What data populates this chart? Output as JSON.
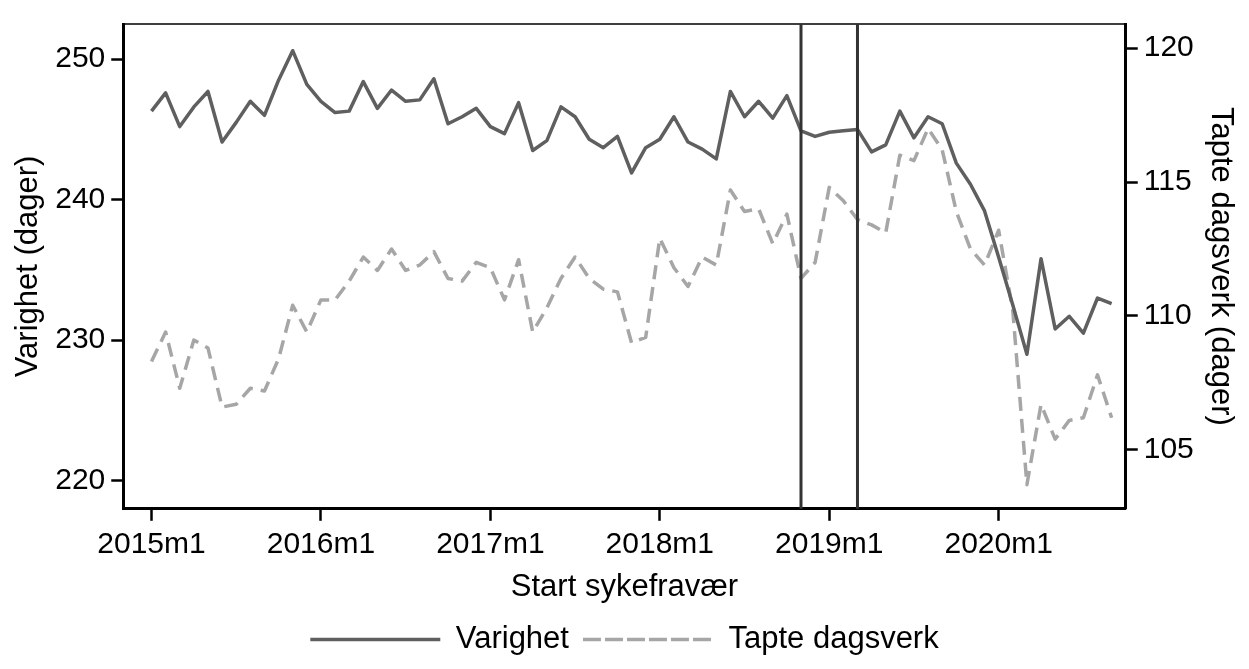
{
  "chart_data": {
    "type": "line",
    "xlabel": "Start sykefravær",
    "ylabel": "Varighet (dager)",
    "y2label": "Tapte dagsverk (dager)",
    "x": [
      "2015-01",
      "2015-02",
      "2015-03",
      "2015-04",
      "2015-05",
      "2015-06",
      "2015-07",
      "2015-08",
      "2015-09",
      "2015-10",
      "2015-11",
      "2015-12",
      "2016-01",
      "2016-02",
      "2016-03",
      "2016-04",
      "2016-05",
      "2016-06",
      "2016-07",
      "2016-08",
      "2016-09",
      "2016-10",
      "2016-11",
      "2016-12",
      "2017-01",
      "2017-02",
      "2017-03",
      "2017-04",
      "2017-05",
      "2017-06",
      "2017-07",
      "2017-08",
      "2017-09",
      "2017-10",
      "2017-11",
      "2017-12",
      "2018-01",
      "2018-02",
      "2018-03",
      "2018-04",
      "2018-05",
      "2018-06",
      "2018-07",
      "2018-08",
      "2018-09",
      "2018-10",
      "2018-11",
      "2018-12",
      "2019-01",
      "2019-02",
      "2019-03",
      "2019-04",
      "2019-05",
      "2019-06",
      "2019-07",
      "2019-08",
      "2019-09",
      "2019-10",
      "2019-11",
      "2019-12",
      "2020-01",
      "2020-02",
      "2020-03",
      "2020-04",
      "2020-05",
      "2020-06",
      "2020-07",
      "2020-08",
      "2020-09"
    ],
    "series": [
      {
        "name": "Varighet",
        "color": "#5f5f5f",
        "line_style": "solid",
        "values": [
          246.3,
          247.6,
          245.2,
          246.6,
          247.7,
          244.1,
          245.5,
          247.0,
          246.0,
          248.5,
          250.6,
          248.2,
          247.0,
          246.2,
          246.3,
          248.4,
          246.5,
          247.8,
          247.0,
          247.1,
          248.6,
          245.4,
          245.9,
          246.5,
          245.2,
          244.7,
          246.9,
          243.5,
          244.2,
          246.6,
          245.9,
          244.3,
          243.7,
          244.5,
          241.9,
          243.7,
          244.3,
          245.9,
          244.1,
          243.6,
          242.9,
          247.7,
          245.9,
          247.0,
          245.8,
          247.4,
          244.9,
          244.5,
          244.8,
          244.9,
          245.0,
          243.4,
          243.9,
          246.3,
          244.4,
          245.9,
          245.4,
          242.6,
          241.1,
          239.2,
          235.9,
          232.5,
          229.0,
          235.8,
          230.8,
          231.7,
          230.5,
          233.0,
          232.6
        ]
      },
      {
        "name": "Tapte dagsverk",
        "color": "#a6a6a6",
        "line_style": "dashed",
        "axis": "y2",
        "values": [
          108.3,
          109.4,
          107.3,
          109.1,
          108.8,
          106.6,
          106.7,
          107.3,
          107.2,
          108.4,
          110.4,
          109.4,
          110.6,
          110.6,
          111.3,
          112.2,
          111.7,
          112.5,
          111.7,
          111.9,
          112.4,
          111.4,
          111.3,
          112.0,
          111.8,
          110.6,
          112.1,
          109.4,
          110.3,
          111.4,
          112.2,
          111.4,
          111.0,
          110.9,
          109.0,
          109.2,
          112.9,
          111.8,
          111.1,
          112.2,
          111.9,
          114.7,
          113.9,
          114.0,
          112.7,
          113.8,
          111.4,
          112.0,
          114.8,
          114.3,
          113.6,
          113.4,
          113.1,
          116.0,
          115.8,
          117.0,
          116.2,
          113.9,
          112.5,
          111.9,
          113.2,
          110.2,
          103.7,
          106.7,
          105.4,
          106.1,
          106.2,
          107.8,
          106.2
        ]
      }
    ],
    "xlim": [
      "2014-11",
      "2020-10"
    ],
    "xticks": [
      {
        "value": "2015-01",
        "label": "2015m1"
      },
      {
        "value": "2016-01",
        "label": "2016m1"
      },
      {
        "value": "2017-01",
        "label": "2017m1"
      },
      {
        "value": "2018-01",
        "label": "2018m1"
      },
      {
        "value": "2019-01",
        "label": "2019m1"
      },
      {
        "value": "2020-01",
        "label": "2020m1"
      }
    ],
    "ylim": [
      218,
      252.5
    ],
    "yticks": [
      220,
      230,
      240,
      250
    ],
    "y2lim": [
      102.8,
      120.9
    ],
    "y2ticks": [
      105,
      110,
      115,
      120
    ],
    "ref_lines": [
      {
        "axis": "x",
        "value": "2018-11",
        "color": "#333333"
      },
      {
        "axis": "x",
        "value": "2019-03",
        "color": "#333333"
      }
    ],
    "grid": false,
    "legend": "bottom"
  }
}
